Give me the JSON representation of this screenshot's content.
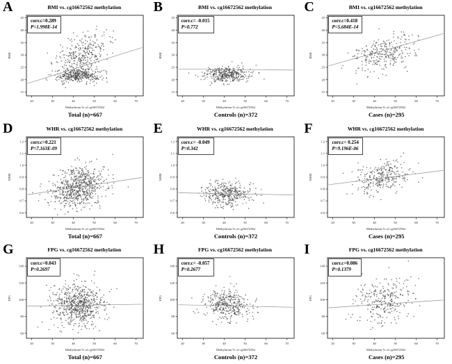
{
  "figure_title": "BMI, WHR and FPG vs. cg16672562 methylation scatter panels",
  "x_axis_label_shared": "Methylation % of cg16672562",
  "colors": {
    "point": "#404040",
    "trend_line": "#909090",
    "frame": "#000000",
    "text": "#000000"
  },
  "chart_data": [
    {
      "letter": "A",
      "type": "scatter",
      "title": "BMI vs. cg16672562 methylation",
      "group_label": "Total (n)=667",
      "n": 667,
      "corr_label": "corr.c=0.289",
      "p_label": "P=1.998E-14",
      "corr": 0.289,
      "p_value": "1.998E-14",
      "x_label": "Methylation % of cg16672562",
      "y_label": "BMI",
      "x_range": [
        17.5,
        73.5
      ],
      "y_range": [
        13.5,
        46
      ],
      "xticks": [
        20,
        30,
        40,
        50,
        60,
        70
      ],
      "xtick_labels": [
        "20",
        "30",
        "40",
        "50",
        "60",
        "70"
      ],
      "yticks": [
        15,
        20,
        25,
        30,
        35,
        40,
        45
      ],
      "ytick_labels": [
        "15",
        "20",
        "25",
        "30",
        "35",
        "40",
        "45"
      ],
      "trend": {
        "x": [
          18,
          73
        ],
        "y": [
          18.5,
          33.0
        ]
      },
      "clusters": [
        {
          "n": 372,
          "mx": 42.0,
          "sx": 5.5,
          "my": 21.8,
          "sy": 1.5,
          "r": 0.05
        },
        {
          "n": 295,
          "mx": 44.5,
          "sx": 6.5,
          "my": 30.5,
          "sy": 4.0,
          "r": 0.35
        }
      ],
      "seed": 11
    },
    {
      "letter": "B",
      "type": "scatter",
      "title": "BMI vs. cg16672562 methylation",
      "group_label": "Controls (n)=372",
      "n": 372,
      "corr_label": "corr.c= -0.015",
      "p_label": "P=0.772",
      "corr": -0.015,
      "p_value": "0.772",
      "x_label": "Methylation % of cg16672562",
      "y_label": "BMI",
      "x_range": [
        17.5,
        73.5
      ],
      "y_range": [
        13.5,
        46
      ],
      "xticks": [
        20,
        30,
        40,
        50,
        60,
        70
      ],
      "xtick_labels": [
        "20",
        "30",
        "40",
        "50",
        "60",
        "70"
      ],
      "yticks": [
        15,
        20,
        25,
        30,
        35,
        40,
        45
      ],
      "ytick_labels": [
        "15",
        "20",
        "25",
        "30",
        "35",
        "40",
        "45"
      ],
      "trend": {
        "x": [
          18,
          73
        ],
        "y": [
          24.3,
          23.9
        ]
      },
      "clusters": [
        {
          "n": 372,
          "mx": 41.5,
          "sx": 5.5,
          "my": 22.3,
          "sy": 1.6,
          "r": -0.02
        }
      ],
      "seed": 22
    },
    {
      "letter": "C",
      "type": "scatter",
      "title": "BMI vs. cg16672562 methylation",
      "group_label": "Cases (n)=295",
      "n": 295,
      "corr_label": "corr.c=0.418",
      "p_label": "P=5.684E-14",
      "corr": 0.418,
      "p_value": "5.684E-14",
      "x_label": "Methylation % of cg16672562",
      "y_label": "BMI",
      "x_range": [
        17.5,
        73.5
      ],
      "y_range": [
        13.5,
        46
      ],
      "xticks": [
        20,
        30,
        40,
        50,
        60,
        70
      ],
      "xtick_labels": [
        "20",
        "30",
        "40",
        "50",
        "60",
        "70"
      ],
      "yticks": [
        15,
        20,
        25,
        30,
        35,
        40,
        45
      ],
      "ytick_labels": [
        "15",
        "20",
        "25",
        "30",
        "35",
        "40",
        "45"
      ],
      "trend": {
        "x": [
          18,
          73
        ],
        "y": [
          25.6,
          38.6
        ]
      },
      "clusters": [
        {
          "n": 295,
          "mx": 44.5,
          "sx": 6.8,
          "my": 30.5,
          "sy": 3.9,
          "r": 0.42
        }
      ],
      "seed": 33
    },
    {
      "letter": "D",
      "type": "scatter",
      "title": "WHR vs. cg16672562 methylation",
      "group_label": "Total (n)=667",
      "n": 667,
      "corr_label": "corr.c=0.221",
      "p_label": "P=7.163E-09",
      "corr": 0.221,
      "p_value": "7.163E-09",
      "x_label": "Methylation % of cg16672562",
      "y_label": "WHR",
      "x_range": [
        17.5,
        73.5
      ],
      "y_range": [
        0.56,
        1.24
      ],
      "xticks": [
        20,
        30,
        40,
        50,
        60,
        70
      ],
      "xtick_labels": [
        "20",
        "30",
        "40",
        "50",
        "60",
        "70"
      ],
      "yticks": [
        0.6,
        0.7,
        0.8,
        0.9,
        1.0,
        1.1,
        1.2
      ],
      "ytick_labels": [
        "0.6",
        "0.7",
        "0.8",
        "0.9",
        "1.0",
        "1.1",
        "1.2"
      ],
      "trend": {
        "x": [
          18,
          73
        ],
        "y": [
          0.752,
          0.897
        ]
      },
      "clusters": [
        {
          "n": 667,
          "mx": 42.5,
          "sx": 6.3,
          "my": 0.815,
          "sy": 0.092,
          "r": 0.22
        }
      ],
      "seed": 44
    },
    {
      "letter": "E",
      "type": "scatter",
      "title": "WHR vs. cg16672562 methylation",
      "group_label": "Controls (n)=372",
      "n": 372,
      "corr_label": "corr.c= -0.049",
      "p_label": "P=0.342",
      "corr": -0.049,
      "p_value": "0.342",
      "x_label": "Methylation % of cg16672562",
      "y_label": "WHR",
      "x_range": [
        17.5,
        73.5
      ],
      "y_range": [
        0.56,
        1.24
      ],
      "xticks": [
        20,
        30,
        40,
        50,
        60,
        70
      ],
      "xtick_labels": [
        "20",
        "30",
        "40",
        "50",
        "60",
        "70"
      ],
      "yticks": [
        0.6,
        0.7,
        0.8,
        0.9,
        1.0,
        1.1,
        1.2
      ],
      "ytick_labels": [
        "0.6",
        "0.7",
        "0.8",
        "0.9",
        "1.0",
        "1.1",
        "1.2"
      ],
      "trend": {
        "x": [
          18,
          73
        ],
        "y": [
          0.768,
          0.75
        ]
      },
      "clusters": [
        {
          "n": 372,
          "mx": 41.5,
          "sx": 5.5,
          "my": 0.757,
          "sy": 0.056,
          "r": -0.05
        }
      ],
      "seed": 55
    },
    {
      "letter": "F",
      "type": "scatter",
      "title": "WHR vs. cg16672562 methylation",
      "group_label": "Cases (n)=295",
      "n": 295,
      "corr_label": "corr.c= 0.254",
      "p_label": "P=9.196E-06",
      "corr": 0.254,
      "p_value": "9.196E-06",
      "x_label": "Methylation % of cg16672562",
      "y_label": "WHR",
      "x_range": [
        17.5,
        73.5
      ],
      "y_range": [
        0.56,
        1.24
      ],
      "xticks": [
        20,
        30,
        40,
        50,
        60,
        70
      ],
      "xtick_labels": [
        "20",
        "30",
        "40",
        "50",
        "60",
        "70"
      ],
      "yticks": [
        0.6,
        0.7,
        0.8,
        0.9,
        1.0,
        1.1,
        1.2
      ],
      "ytick_labels": [
        "0.6",
        "0.7",
        "0.8",
        "0.9",
        "1.0",
        "1.1",
        "1.2"
      ],
      "trend": {
        "x": [
          18,
          73
        ],
        "y": [
          0.836,
          0.957
        ]
      },
      "clusters": [
        {
          "n": 295,
          "mx": 44.5,
          "sx": 6.5,
          "my": 0.9,
          "sy": 0.068,
          "r": 0.25
        }
      ],
      "seed": 66
    },
    {
      "letter": "G",
      "type": "scatter",
      "title": "FPG vs. cg16672562 methylation",
      "group_label": "Total (n)=667",
      "n": 667,
      "corr_label": "corr.c=0.043",
      "p_label": "P=0.2697",
      "corr": 0.043,
      "p_value": "0.2697",
      "x_label": "Methylation % of cg16672562",
      "y_label": "FPG",
      "x_range": [
        17.5,
        73.5
      ],
      "y_range": [
        54,
        150
      ],
      "xticks": [
        20,
        30,
        40,
        50,
        60,
        70
      ],
      "xtick_labels": [
        "20",
        "30",
        "40",
        "50",
        "60",
        "70"
      ],
      "yticks": [
        60,
        80,
        100,
        120,
        140
      ],
      "ytick_labels": [
        "60",
        "80",
        "100",
        "120",
        "140"
      ],
      "trend": {
        "x": [
          18,
          73
        ],
        "y": [
          92.3,
          94.6
        ]
      },
      "clusters": [
        {
          "n": 667,
          "mx": 42.5,
          "sx": 6.3,
          "my": 94,
          "sy": 12,
          "r": 0.04
        }
      ],
      "seed": 77
    },
    {
      "letter": "H",
      "type": "scatter",
      "title": "FPG vs. cg16672562 methylation",
      "group_label": "Controls (n)=372",
      "n": 372,
      "corr_label": "corr.c= -0.057",
      "p_label": "P=0.2677",
      "corr": -0.057,
      "p_value": "0.2677",
      "x_label": "Methylation % of cg16672562",
      "y_label": "FPG",
      "x_range": [
        17.5,
        73.5
      ],
      "y_range": [
        54,
        150
      ],
      "xticks": [
        20,
        30,
        40,
        50,
        60,
        70
      ],
      "xtick_labels": [
        "20",
        "30",
        "40",
        "50",
        "60",
        "70"
      ],
      "yticks": [
        60,
        80,
        100,
        120,
        140
      ],
      "ytick_labels": [
        "60",
        "80",
        "100",
        "120",
        "140"
      ],
      "trend": {
        "x": [
          18,
          73
        ],
        "y": [
          94.0,
          91.0
        ]
      },
      "clusters": [
        {
          "n": 372,
          "mx": 41.5,
          "sx": 5.5,
          "my": 93,
          "sy": 9.5,
          "r": -0.06
        }
      ],
      "seed": 88
    },
    {
      "letter": "I",
      "type": "scatter",
      "title": "FPG vs. cg16672562 methylation",
      "group_label": "Cases (n)=295",
      "n": 295,
      "corr_label": "corr.c=0.086",
      "p_label": "P=0.1379",
      "corr": 0.086,
      "p_value": "0.1379",
      "x_label": "Methylation % of cg16672562",
      "y_label": "FPG",
      "x_range": [
        17.5,
        73.5
      ],
      "y_range": [
        54,
        150
      ],
      "xticks": [
        20,
        30,
        40,
        50,
        60,
        70
      ],
      "xtick_labels": [
        "20",
        "30",
        "40",
        "50",
        "60",
        "70"
      ],
      "yticks": [
        60,
        80,
        100,
        120,
        140
      ],
      "ytick_labels": [
        "60",
        "80",
        "100",
        "120",
        "140"
      ],
      "trend": {
        "x": [
          18,
          73
        ],
        "y": [
          90.3,
          99.6
        ]
      },
      "clusters": [
        {
          "n": 295,
          "mx": 44.5,
          "sx": 6.5,
          "my": 99,
          "sy": 13.5,
          "r": 0.09
        }
      ],
      "seed": 99
    }
  ]
}
